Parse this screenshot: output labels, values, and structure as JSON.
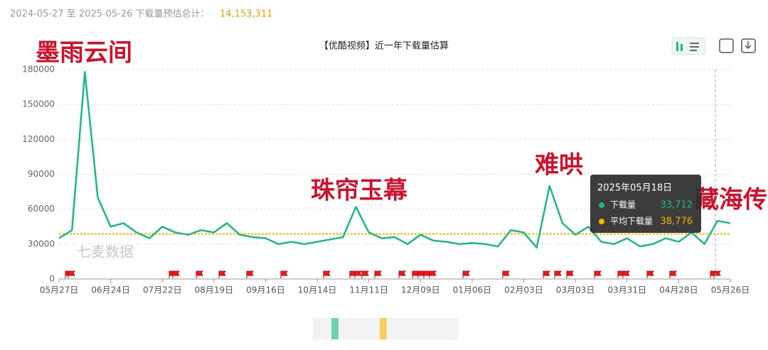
{
  "header": {
    "range": "2024-05-27 至 2025-05-26 下载量预估总计：",
    "total": "14,153,311"
  },
  "chart_data": {
    "type": "line",
    "title": "【优酷视频】近一年下载量估算",
    "x": [
      "2024-05-27",
      "2024-06-03",
      "2024-06-10",
      "2024-06-17",
      "2024-06-24",
      "2024-07-01",
      "2024-07-08",
      "2024-07-15",
      "2024-07-22",
      "2024-07-29",
      "2024-08-05",
      "2024-08-12",
      "2024-08-19",
      "2024-08-26",
      "2024-09-02",
      "2024-09-09",
      "2024-09-16",
      "2024-09-23",
      "2024-09-30",
      "2024-10-07",
      "2024-10-14",
      "2024-10-21",
      "2024-10-28",
      "2024-11-04",
      "2024-11-11",
      "2024-11-18",
      "2024-11-25",
      "2024-12-02",
      "2024-12-09",
      "2024-12-16",
      "2024-12-23",
      "2024-12-30",
      "2025-01-06",
      "2025-01-13",
      "2025-01-20",
      "2025-01-27",
      "2025-02-03",
      "2025-02-10",
      "2025-02-17",
      "2025-02-24",
      "2025-03-03",
      "2025-03-10",
      "2025-03-17",
      "2025-03-24",
      "2025-03-31",
      "2025-04-07",
      "2025-04-14",
      "2025-04-21",
      "2025-04-28",
      "2025-05-05",
      "2025-05-12",
      "2025-05-19",
      "2025-05-26"
    ],
    "series": [
      {
        "name": "下载量",
        "color": "#1db88a",
        "values": [
          35000,
          42000,
          178000,
          70000,
          45000,
          48000,
          40000,
          35000,
          45000,
          40000,
          38000,
          42000,
          40000,
          48000,
          38000,
          36000,
          35000,
          30000,
          32000,
          30000,
          32000,
          34000,
          36000,
          62000,
          40000,
          35000,
          36000,
          30000,
          38000,
          33000,
          32000,
          30000,
          31000,
          30000,
          28000,
          42000,
          40000,
          27000,
          80000,
          48000,
          38000,
          45000,
          32000,
          30000,
          35000,
          28000,
          30000,
          35000,
          32000,
          40000,
          30000,
          50000,
          48000
        ]
      }
    ],
    "average": {
      "name": "平均下载量",
      "value": 38776,
      "label": "38,776",
      "color": "#f5b800"
    },
    "xlim": [
      "2024-05-27",
      "2025-05-26"
    ],
    "xticks": [
      {
        "value": "2024-05-27",
        "label": "05月27日"
      },
      {
        "value": "2024-06-24",
        "label": "06月24日"
      },
      {
        "value": "2024-07-22",
        "label": "07月22日"
      },
      {
        "value": "2024-08-19",
        "label": "08月19日"
      },
      {
        "value": "2024-09-16",
        "label": "09月16日"
      },
      {
        "value": "2024-10-14",
        "label": "10月14日"
      },
      {
        "value": "2024-11-11",
        "label": "11月11日"
      },
      {
        "value": "2024-12-09",
        "label": "12月09日"
      },
      {
        "value": "2025-01-06",
        "label": "01月06日"
      },
      {
        "value": "2025-02-03",
        "label": "02月03日"
      },
      {
        "value": "2025-03-03",
        "label": "03月03日"
      },
      {
        "value": "2025-03-31",
        "label": "03月31日"
      },
      {
        "value": "2025-04-28",
        "label": "04月28日"
      },
      {
        "value": "2025-05-26",
        "label": "05月26日"
      }
    ],
    "ylim": [
      0,
      180000
    ],
    "yticks": [
      0,
      30000,
      60000,
      90000,
      120000,
      150000,
      180000
    ],
    "grid": true,
    "tooltip": {
      "date": "2025年05月18日",
      "value": 33712,
      "value_label": "33,712"
    },
    "annotations": [
      "墨雨云间",
      "珠帘玉幕",
      "难哄",
      "藏海传"
    ],
    "watermark": "七麦数据"
  }
}
